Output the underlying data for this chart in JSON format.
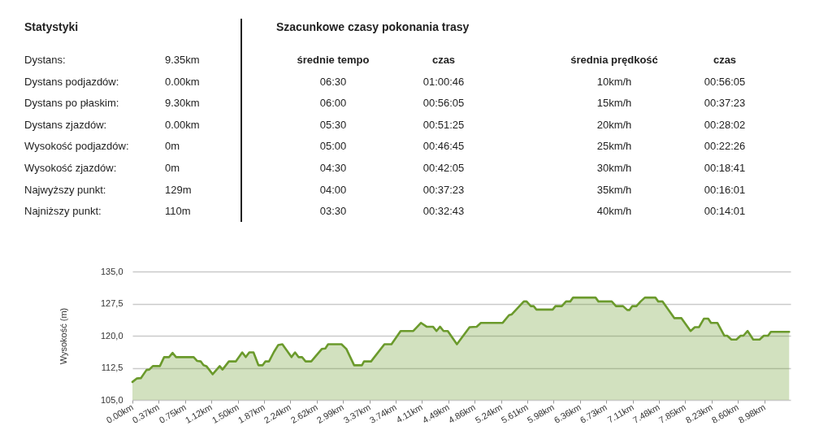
{
  "chart_data": {
    "type": "area",
    "ylabel": "Wysokość (m)",
    "x": [
      0,
      0.06,
      0.12,
      0.2,
      0.24,
      0.29,
      0.39,
      0.45,
      0.52,
      0.57,
      0.62,
      0.87,
      0.92,
      0.97,
      1.01,
      1.05,
      1.14,
      1.24,
      1.28,
      1.37,
      1.47,
      1.56,
      1.61,
      1.66,
      1.72,
      1.79,
      1.85,
      1.89,
      1.94,
      2.01,
      2.07,
      2.13,
      2.26,
      2.31,
      2.36,
      2.41,
      2.46,
      2.54,
      2.69,
      2.74,
      2.78,
      2.97,
      3.04,
      3.15,
      3.26,
      3.29,
      3.39,
      3.58,
      3.68,
      3.81,
      3.99,
      4.1,
      4.18,
      4.27,
      4.32,
      4.37,
      4.42,
      4.48,
      4.61,
      4.79,
      4.89,
      4.95,
      5.26,
      5.35,
      5.39,
      5.56,
      5.6,
      5.66,
      5.7,
      5.74,
      5.97,
      6.01,
      6.1,
      6.16,
      6.22,
      6.26,
      6.58,
      6.62,
      6.81,
      6.87,
      6.97,
      7.03,
      7.06,
      7.1,
      7.16,
      7.22,
      7.28,
      7.43,
      7.47,
      7.53,
      7.7,
      7.8,
      7.93,
      7.99,
      8.05,
      8.12,
      8.18,
      8.22,
      8.31,
      8.41,
      8.45,
      8.51,
      8.58,
      8.64,
      8.68,
      8.74,
      8.82,
      8.91,
      8.97,
      9.03,
      9.07,
      9.33
    ],
    "series": [
      {
        "color": "#6b9a2c",
        "values": [
          109.2,
          110.0,
          110.1,
          112.0,
          112.1,
          112.9,
          112.9,
          115.0,
          115.0,
          116.0,
          115.0,
          115.0,
          114.1,
          114.0,
          113.1,
          112.9,
          111.0,
          112.9,
          112.1,
          114.0,
          114.0,
          116.1,
          115.0,
          116.1,
          116.1,
          113.1,
          113.1,
          114.0,
          114.0,
          116.2,
          117.8,
          118.0,
          115.0,
          116.1,
          115.0,
          115.0,
          114.0,
          114.0,
          116.9,
          117.0,
          118.0,
          118.0,
          116.9,
          113.1,
          113.1,
          114.0,
          114.0,
          118.0,
          118.0,
          121.1,
          121.1,
          123.0,
          122.1,
          122.1,
          121.1,
          122.1,
          121.1,
          121.1,
          118.0,
          122.0,
          122.1,
          123.0,
          123.0,
          124.8,
          125.0,
          128.0,
          128.0,
          126.9,
          126.9,
          126.1,
          126.1,
          126.9,
          126.9,
          128.0,
          128.0,
          128.9,
          128.9,
          128.0,
          128.0,
          126.9,
          126.9,
          126.0,
          126.0,
          126.9,
          126.9,
          128.0,
          128.9,
          128.9,
          128.0,
          128.0,
          124.1,
          124.1,
          121.1,
          122.0,
          122.0,
          124.0,
          124.0,
          123.0,
          123.0,
          120.0,
          120.0,
          119.1,
          119.1,
          120.0,
          120.0,
          121.1,
          119.1,
          119.1,
          120.0,
          120.0,
          120.9,
          120.9
        ]
      }
    ],
    "xlim": [
      0,
      9.35
    ],
    "xticks": [
      {
        "value": 0,
        "label": "0.00km"
      },
      {
        "value": 0.37,
        "label": "0.37km"
      },
      {
        "value": 0.75,
        "label": "0.75km"
      },
      {
        "value": 1.12,
        "label": "1.12km"
      },
      {
        "value": 1.5,
        "label": "1.50km"
      },
      {
        "value": 1.87,
        "label": "1.87km"
      },
      {
        "value": 2.24,
        "label": "2.24km"
      },
      {
        "value": 2.62,
        "label": "2.62km"
      },
      {
        "value": 2.99,
        "label": "2.99km"
      },
      {
        "value": 3.37,
        "label": "3.37km"
      },
      {
        "value": 3.74,
        "label": "3.74km"
      },
      {
        "value": 4.11,
        "label": "4.11km"
      },
      {
        "value": 4.49,
        "label": "4.49km"
      },
      {
        "value": 4.86,
        "label": "4.86km"
      },
      {
        "value": 5.24,
        "label": "5.24km"
      },
      {
        "value": 5.61,
        "label": "5.61km"
      },
      {
        "value": 5.98,
        "label": "5.98km"
      },
      {
        "value": 6.36,
        "label": "6.36km"
      },
      {
        "value": 6.73,
        "label": "6.73km"
      },
      {
        "value": 7.11,
        "label": "7.11km"
      },
      {
        "value": 7.48,
        "label": "7.48km"
      },
      {
        "value": 7.85,
        "label": "7.85km"
      },
      {
        "value": 8.23,
        "label": "8.23km"
      },
      {
        "value": 8.6,
        "label": "8.60km"
      },
      {
        "value": 8.98,
        "label": "8.98km"
      }
    ],
    "ylim": [
      105,
      135
    ],
    "yticks": [
      {
        "value": 105,
        "label": "105,0"
      },
      {
        "value": 112.5,
        "label": "112,5"
      },
      {
        "value": 120,
        "label": "120,0"
      },
      {
        "value": 127.5,
        "label": "127,5"
      },
      {
        "value": 135,
        "label": "135,0"
      }
    ],
    "grid": "y",
    "annotations": [
      "Statystyki",
      "Dystans:",
      "9.35km",
      "Dystans podjazdów:",
      "0.00km",
      "Dystans po płaskim:",
      "9.30km",
      "Dystans zjazdów:",
      "0.00km",
      "Wysokość podjazdów:",
      "0m",
      "Wysokość zjazdów:",
      "0m",
      "Najwyższy punkt:",
      "129m",
      "Najniższy punkt:",
      "110m",
      "Szacunkowe czasy pokonania trasy",
      "średnie tempo",
      "czas",
      "06:30",
      "01:00:46",
      "06:00",
      "00:56:05",
      "05:30",
      "00:51:25",
      "05:00",
      "00:46:45",
      "04:30",
      "00:42:05",
      "04:00",
      "00:37:23",
      "03:30",
      "00:32:43",
      "średnia prędkość",
      "czas",
      "10km/h",
      "00:56:05",
      "15km/h",
      "00:37:23",
      "20km/h",
      "00:28:02",
      "25km/h",
      "00:22:26",
      "30km/h",
      "00:18:41",
      "35km/h",
      "00:16:01",
      "40km/h",
      "00:14:01"
    ]
  }
}
